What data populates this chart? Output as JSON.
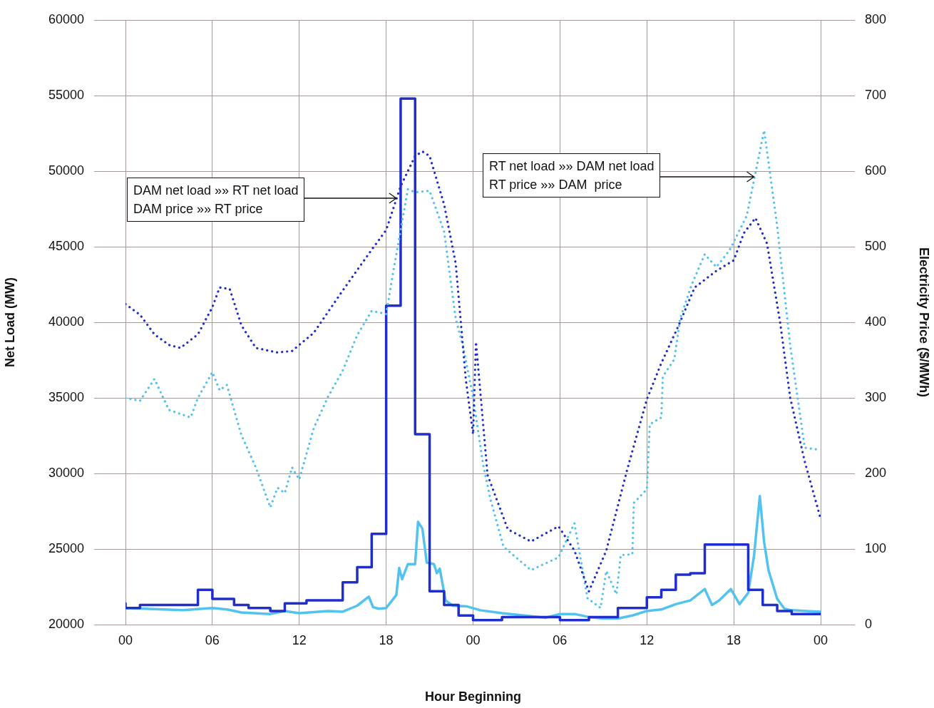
{
  "chart_data": {
    "type": "line",
    "xlabel": "Hour Beginning",
    "ylabel": "Net Load (MW)",
    "y2label": "Electricity Price ($/MWh)",
    "xlim": [
      0,
      48
    ],
    "xticks": [
      {
        "value": 0,
        "label": "00"
      },
      {
        "value": 6,
        "label": "06"
      },
      {
        "value": 12,
        "label": "12"
      },
      {
        "value": 18,
        "label": "18"
      },
      {
        "value": 24,
        "label": "00"
      },
      {
        "value": 30,
        "label": "06"
      },
      {
        "value": 36,
        "label": "12"
      },
      {
        "value": 42,
        "label": "18"
      },
      {
        "value": 48,
        "label": "00"
      }
    ],
    "ylim": [
      20000,
      60000
    ],
    "yticks": [
      20000,
      25000,
      30000,
      35000,
      40000,
      45000,
      50000,
      55000,
      60000
    ],
    "y2lim": [
      0,
      800
    ],
    "y2ticks": [
      0,
      100,
      200,
      300,
      400,
      500,
      600,
      700,
      800
    ],
    "grid": true,
    "marker": "none",
    "annotations": [
      {
        "text": "DAM net load »» RT net load",
        "x": 18.7,
        "y": 48200
      },
      "DAM price »» RT price",
      {
        "text": "RT net load »» DAM net load",
        "x": 43.4,
        "y": 49600
      },
      "RT price »» DAM  price"
    ],
    "series": [
      {
        "type": "line",
        "axis": "y",
        "color": "#1f2ecc",
        "line_style": "dotted",
        "x": [
          0,
          1,
          2,
          3,
          3.8,
          5,
          6,
          6.5,
          7.2,
          8,
          9,
          10.5,
          11.5,
          13,
          15,
          17,
          18,
          19,
          20,
          20.5,
          21,
          22,
          22.8,
          23.5,
          24,
          24.2,
          25,
          26.4,
          28,
          29.9,
          31,
          32,
          33.2,
          34.6,
          36,
          37,
          38.2,
          39.3,
          40.8,
          42,
          42.7,
          43.5,
          44.3,
          45.2,
          45.9,
          46.9,
          48
        ],
        "values": [
          41200,
          40500,
          39200,
          38500,
          38300,
          39200,
          41000,
          42300,
          42200,
          39800,
          38300,
          38000,
          38100,
          39300,
          42100,
          44800,
          46100,
          49000,
          51000,
          51300,
          51000,
          47800,
          43900,
          36200,
          32600,
          38700,
          29900,
          26300,
          25500,
          26500,
          24900,
          22200,
          24900,
          30100,
          34900,
          37300,
          39800,
          42300,
          43400,
          44100,
          45900,
          46900,
          45200,
          40000,
          35000,
          30800,
          27000
        ]
      },
      {
        "type": "line",
        "axis": "y2",
        "color": "#52c3f0",
        "line_style": "dotted",
        "x": [
          0,
          1,
          2,
          3,
          4.5,
          5,
          6,
          6.5,
          7,
          8,
          9,
          10,
          10.5,
          11,
          11.5,
          12,
          13,
          14,
          15,
          16,
          17,
          18,
          18.5,
          19.5,
          20,
          21,
          22,
          22.8,
          23.3,
          24,
          24.7,
          25.2,
          26.1,
          28,
          29.9,
          31,
          31.9,
          32.8,
          33.2,
          33.9,
          34.2,
          35,
          35.1,
          36,
          36.2,
          37,
          37.1,
          37.9,
          38.3,
          39.1,
          40,
          40.8,
          41.7,
          42.9,
          44.1,
          45,
          45.9,
          46.9,
          48
        ],
        "values": [
          300,
          296,
          325,
          284,
          274,
          300,
          334,
          310,
          317,
          251,
          208,
          155,
          181,
          174,
          208,
          192,
          260,
          302,
          336,
          383,
          415,
          411,
          468,
          576,
          572,
          574,
          520,
          405,
          369,
          301,
          211,
          166,
          103,
          72,
          89,
          134,
          35,
          22,
          71,
          40,
          92,
          93,
          161,
          179,
          265,
          274,
          328,
          351,
          405,
          450,
          490,
          473,
          495,
          541,
          654,
          527,
          369,
          234,
          231
        ]
      },
      {
        "type": "step",
        "axis": "y",
        "color": "#1f2ecc",
        "line_style": "solid",
        "x": [
          0,
          1,
          5,
          6,
          7.5,
          8.5,
          10,
          11,
          12.5,
          15,
          16,
          17,
          18,
          19,
          20,
          21,
          22,
          23,
          24,
          26,
          30,
          32,
          34,
          36,
          37,
          38,
          39,
          40,
          43,
          44,
          45,
          46,
          47,
          48
        ],
        "values": [
          21400,
          21100,
          21300,
          22300,
          21700,
          21300,
          21100,
          20900,
          21400,
          21600,
          22800,
          23800,
          26000,
          41100,
          54800,
          32600,
          22200,
          21300,
          20600,
          20300,
          20500,
          20300,
          20500,
          21100,
          21800,
          22300,
          23300,
          23400,
          25300,
          22300,
          21300,
          20900,
          20700,
          20700
        ]
      },
      {
        "type": "line",
        "axis": "y2",
        "color": "#52c3f0",
        "line_style": "solid",
        "x": [
          0,
          4,
          6,
          7,
          8,
          10,
          11,
          12,
          14,
          15,
          16,
          16.8,
          17.1,
          17.5,
          18,
          18.7,
          18.9,
          19.1,
          19.5,
          20,
          20.2,
          20.5,
          20.8,
          21.3,
          21.5,
          21.7,
          22.1,
          22.6,
          23.6,
          24.5,
          26,
          28,
          29,
          30,
          31,
          32,
          33,
          34,
          35,
          36,
          37,
          38,
          39,
          40,
          40.5,
          41,
          41.8,
          42.4,
          43,
          43.4,
          43.8,
          44.1,
          44.4,
          45,
          45.5,
          46,
          47,
          48
        ],
        "values": [
          22,
          19,
          22,
          20,
          16,
          14,
          18,
          15,
          18,
          17,
          25,
          37,
          23,
          21,
          22,
          39,
          75,
          60,
          80,
          80,
          136,
          127,
          82,
          80,
          68,
          74,
          32,
          25,
          24,
          19,
          15,
          11,
          9,
          14,
          14,
          10,
          8,
          8,
          12,
          18,
          20,
          27,
          32,
          47,
          26,
          32,
          47,
          27,
          42,
          91,
          170,
          109,
          72,
          34,
          21,
          19,
          18,
          17
        ]
      }
    ]
  }
}
